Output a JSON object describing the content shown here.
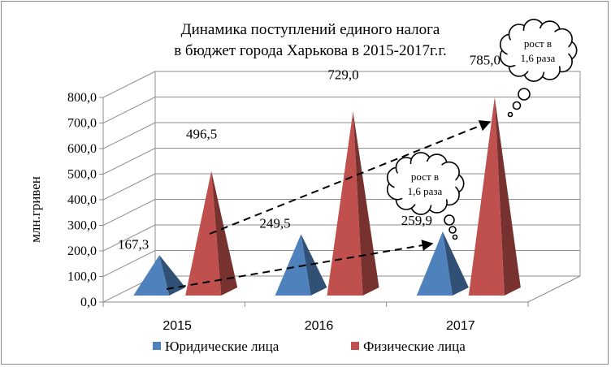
{
  "chart_data": {
    "type": "bar",
    "subtype": "3d-pyramid",
    "title_line1": "Динамика поступлений единого налога",
    "title_line2": "в бюджет города Харькова в 2015-2017г.г.",
    "ylabel": "млн.гривен",
    "xlabel": "",
    "ylim": [
      0,
      800
    ],
    "yticks": [
      "0,0",
      "100,0",
      "200,0",
      "300,0",
      "400,0",
      "500,0",
      "600,0",
      "700,0",
      "800,0"
    ],
    "categories": [
      "2015",
      "2016",
      "2017"
    ],
    "grid": true,
    "legend_position": "bottom",
    "series": [
      {
        "name": "Юридические лица",
        "values": [
          167.3,
          249.5,
          259.9
        ],
        "labels": [
          "167,3",
          "249,5",
          "259,9"
        ],
        "color": "#4f81bd"
      },
      {
        "name": "Физические лица",
        "values": [
          496.5,
          729.0,
          785.0
        ],
        "labels": [
          "496,5",
          "729,0",
          "785,0"
        ],
        "color": "#c0504d"
      }
    ],
    "annotations": [
      {
        "line1": "рост в",
        "line2": "1,6 раза",
        "refers_to": "Физические лица"
      },
      {
        "line1": "рост в",
        "line2": "1,6 раза",
        "refers_to": "Юридические лица"
      }
    ]
  }
}
